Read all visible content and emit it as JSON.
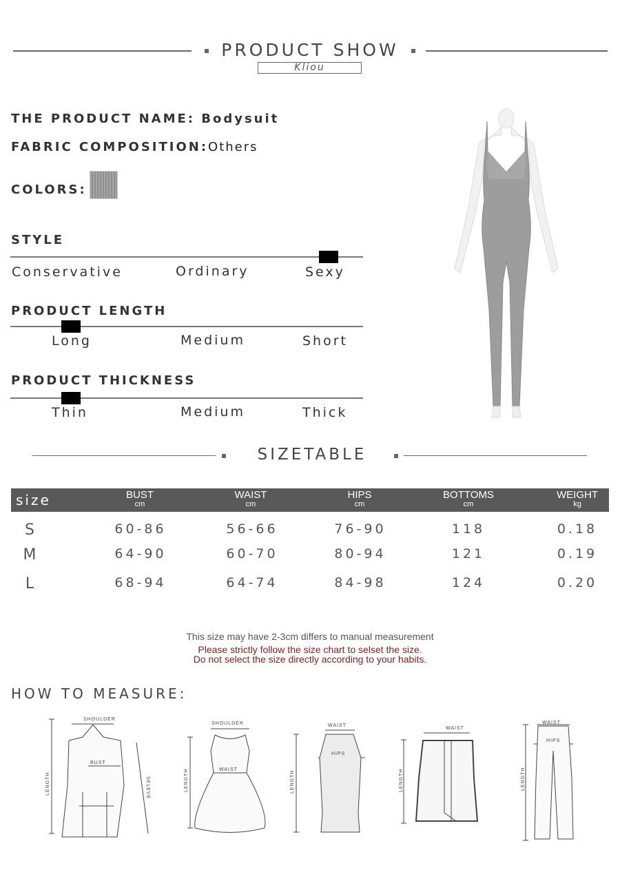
{
  "header": {
    "title": "PRODUCT SHOW",
    "brand": "Kliou"
  },
  "product": {
    "name_label": "THE PRODUCT NAME:",
    "name": "Bodysuit",
    "fabric_label": "FABRIC COMPOSITION:",
    "fabric": "Others",
    "colors_label": "COLORS:",
    "swatch_color": "#9a9a9a"
  },
  "scales": [
    {
      "title": "STYLE",
      "options": [
        "Conservative",
        "Ordinary",
        "Sexy"
      ],
      "selected": "Sexy"
    },
    {
      "title": "PRODUCT LENGTH",
      "options": [
        "Long",
        "Medium",
        "Short"
      ],
      "selected": "Long"
    },
    {
      "title": "PRODUCT THICKNESS",
      "options": [
        "Thin",
        "Medium",
        "Thick"
      ],
      "selected": "Thin"
    }
  ],
  "sizetable": {
    "title": "SIZETABLE",
    "header_color": "#595959",
    "columns": [
      {
        "label": "size",
        "unit": ""
      },
      {
        "label": "BUST",
        "unit": "cm"
      },
      {
        "label": "WAIST",
        "unit": "cm"
      },
      {
        "label": "HIPS",
        "unit": "cm"
      },
      {
        "label": "BOTTOMS",
        "unit": "cm"
      },
      {
        "label": "WEIGHT",
        "unit": "kg"
      }
    ],
    "rows": [
      [
        "S",
        "60-86",
        "56-66",
        "76-90",
        "118",
        "0.18"
      ],
      [
        "M",
        "64-90",
        "60-70",
        "80-94",
        "121",
        "0.19"
      ],
      [
        "L",
        "68-94",
        "64-74",
        "84-98",
        "124",
        "0.20"
      ]
    ]
  },
  "notes": {
    "line1": "This size may have 2-3cm differs to manual measurement",
    "line2": "Please strictly follow the size chart to selset the size.",
    "line3": "Do not select the size directly according to your habits.",
    "warning_color": "#8b1a1a"
  },
  "measure": {
    "title": "HOW TO MEASURE:",
    "labels": {
      "shoulder": "SHOULDER",
      "bust": "BUST",
      "length": "LENGTH",
      "sleeve": "SELEVE",
      "waist": "WAIST",
      "hips": "HIPS"
    }
  }
}
